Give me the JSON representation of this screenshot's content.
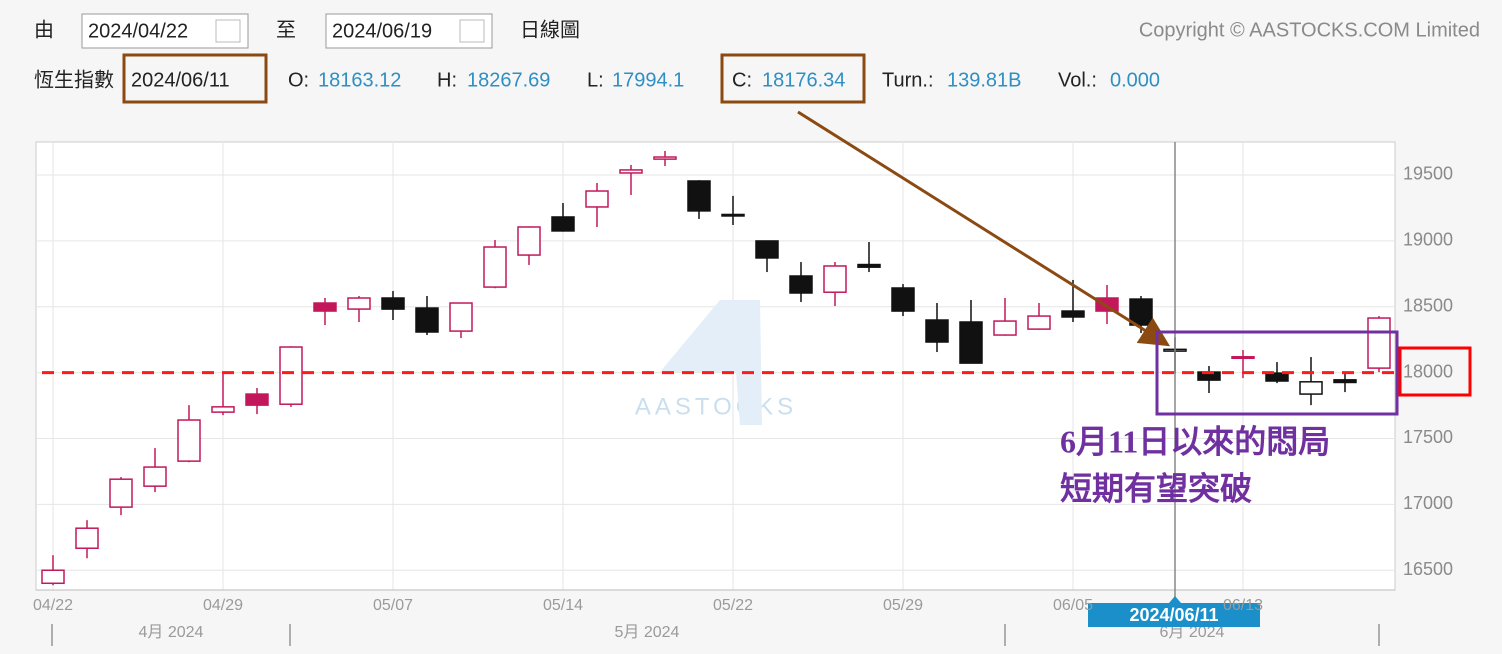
{
  "header": {
    "from_label": "由",
    "from_date": "2024/04/22",
    "to_label": "至",
    "to_date": "2024/06/19",
    "view": "日線圖",
    "copyright": "Copyright © AASTOCKS.COM Limited",
    "index_name": "恆生指數",
    "date": "2024/06/11",
    "open_label": "O:",
    "high_label": "H:",
    "low_label": "L:",
    "close_label": "C:",
    "turnover_label": "Turn.:",
    "turnover": "139.81B",
    "volume_label": "Vol.:",
    "volume": "0.000"
  },
  "chart_data": {
    "type": "candlestick",
    "categories": [
      "04/22",
      null,
      null,
      null,
      null,
      "04/29",
      null,
      null,
      null,
      null,
      "05/07",
      null,
      null,
      null,
      null,
      "05/14",
      null,
      null,
      null,
      null,
      "05/22",
      null,
      null,
      null,
      null,
      "05/29",
      null,
      null,
      null,
      null,
      "06/05",
      null,
      null,
      null,
      null,
      "06/13",
      null,
      null,
      null,
      null
    ],
    "open": [
      16401,
      16667,
      16979,
      17138,
      17328,
      17700,
      17837,
      17760,
      18528,
      18482,
      18566,
      18490,
      18315,
      18649,
      18892,
      19181,
      19257,
      19515,
      19620,
      19454,
      19200,
      18999,
      18733,
      18610,
      18820,
      18642,
      18399,
      18384,
      18285,
      18330,
      18467,
      18566,
      18558,
      18163.12,
      18004,
      18110,
      17996,
      17837,
      17945,
      18034
    ],
    "high": [
      16614,
      16880,
      17207,
      17427,
      17753,
      17996,
      17883,
      18200,
      18566,
      18581,
      18619,
      18581,
      18530,
      19006,
      19110,
      19287,
      19439,
      19576,
      19682,
      19460,
      19341,
      19000,
      18839,
      18839,
      18991,
      18672,
      18528,
      18551,
      18566,
      18528,
      18703,
      18665,
      18581,
      18267.69,
      18050,
      18171,
      18080,
      18118,
      18004,
      18429
    ],
    "low": [
      16386,
      16591,
      16918,
      17093,
      17320,
      17677,
      17685,
      17740,
      18361,
      18384,
      18399,
      18285,
      18262,
      18640,
      18817,
      19070,
      19105,
      19348,
      19568,
      19166,
      19120,
      18763,
      18536,
      18505,
      18763,
      18429,
      18156,
      18070,
      18280,
      18325,
      18384,
      18369,
      18300,
      17994.1,
      17845,
      17958,
      17920,
      17753,
      17852,
      18004
    ],
    "close": [
      16500,
      16819,
      17191,
      17283,
      17640,
      17740,
      17753,
      18194,
      18467,
      18566,
      18482,
      18308,
      18528,
      18953,
      19105,
      19075,
      19378,
      19538,
      19636,
      19227,
      19190,
      18870,
      18604,
      18809,
      18800,
      18467,
      18232,
      18072,
      18391,
      18429,
      18422,
      18467,
      18361,
      18176.34,
      17943,
      18120,
      17936,
      17930,
      17925,
      18414
    ],
    "ylim": [
      16350,
      19750
    ],
    "yticks": [
      16500,
      17000,
      17500,
      18000,
      18500,
      19000,
      19500
    ],
    "y_axis_side": "right",
    "grid": true,
    "colors": {
      "rise": "#c2185b",
      "fall": "#111111"
    },
    "reference_line": {
      "value": 18000,
      "color": "#ff1a1a"
    },
    "month_labels": [
      "4月 2024",
      "5月 2024",
      "6月 2024"
    ],
    "watermark": "AASTOCKS",
    "annotation": [
      "6月11日以來的悶局",
      "短期有望突破"
    ]
  }
}
